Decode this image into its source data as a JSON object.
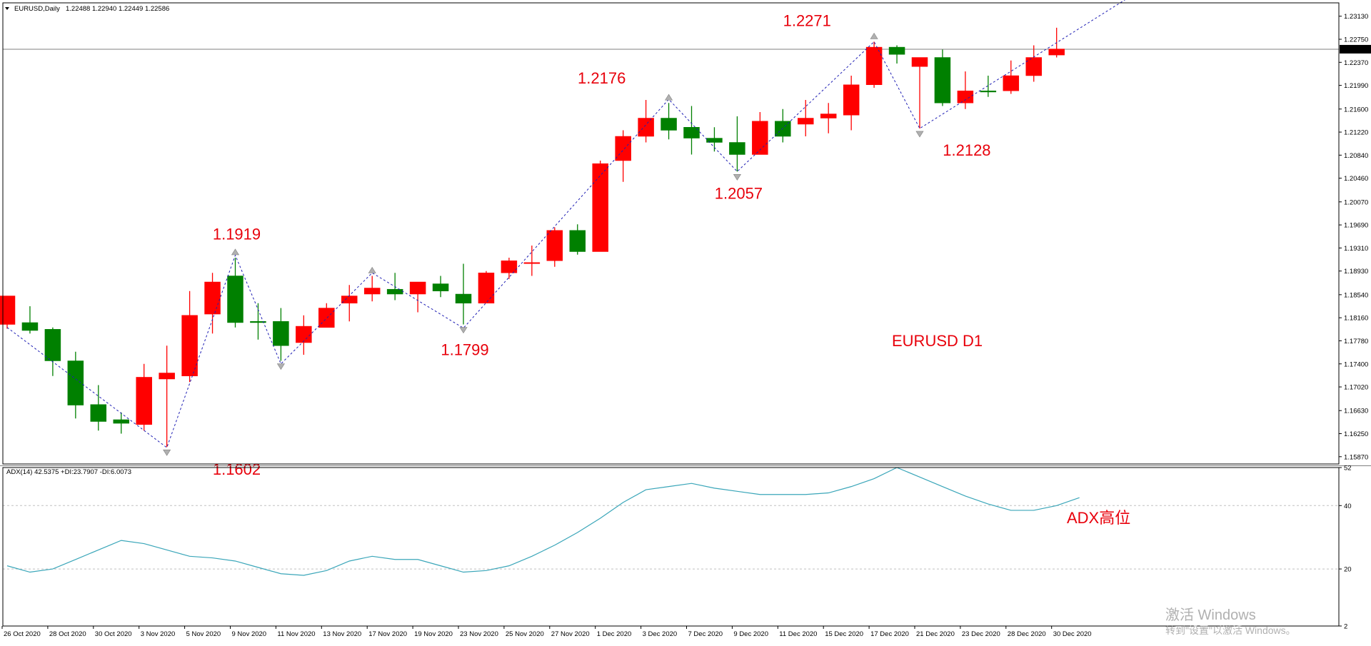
{
  "colors": {
    "up_candle": "#ff0000",
    "down_candle": "#008000",
    "zigzag": "#1e1eb4",
    "adx_line": "#3aa6b9",
    "annotation": "#e8000b",
    "frame": "#000000",
    "grid_level": "#c0c0c0",
    "current_price_line": "#808080"
  },
  "header": {
    "symbol_label": "EURUSD,Daily",
    "ohlc": "1.22488 1.22940 1.22449 1.22586"
  },
  "indicator_header": "ADX(14) 42.5375 +DI:23.7907 -DI:6.0073",
  "chart_data": [
    {
      "type": "candlestick",
      "title": "EURUSD D1",
      "ylim": [
        1.1575,
        1.2335
      ],
      "y_ticks": [
        "1.23130",
        "1.22750",
        "1.22370",
        "1.21990",
        "1.21600",
        "1.21220",
        "1.20840",
        "1.20460",
        "1.20070",
        "1.19690",
        "1.19310",
        "1.18930",
        "1.18540",
        "1.18160",
        "1.17780",
        "1.17400",
        "1.17020",
        "1.16630",
        "1.16250",
        "1.15870"
      ],
      "current_price": "1.22586",
      "x_tick_labels": [
        "26 Oct 2020",
        "28 Oct 2020",
        "30 Oct 2020",
        "3 Nov 2020",
        "5 Nov 2020",
        "9 Nov 2020",
        "11 Nov 2020",
        "13 Nov 2020",
        "17 Nov 2020",
        "19 Nov 2020",
        "23 Nov 2020",
        "25 Nov 2020",
        "27 Nov 2020",
        "1 Dec 2020",
        "3 Dec 2020",
        "7 Dec 2020",
        "9 Dec 2020",
        "11 Dec 2020",
        "15 Dec 2020",
        "17 Dec 2020",
        "21 Dec 2020",
        "23 Dec 2020",
        "28 Dec 2020",
        "30 Dec 2020"
      ],
      "candles": [
        {
          "o": 1.1805,
          "h": 1.1852,
          "l": 1.1798,
          "c": 1.1852
        },
        {
          "o": 1.1808,
          "h": 1.1835,
          "l": 1.179,
          "c": 1.1795
        },
        {
          "o": 1.1797,
          "h": 1.18,
          "l": 1.172,
          "c": 1.1745
        },
        {
          "o": 1.1745,
          "h": 1.176,
          "l": 1.165,
          "c": 1.1672
        },
        {
          "o": 1.1673,
          "h": 1.1705,
          "l": 1.163,
          "c": 1.1645
        },
        {
          "o": 1.1648,
          "h": 1.166,
          "l": 1.1625,
          "c": 1.1642
        },
        {
          "o": 1.164,
          "h": 1.174,
          "l": 1.163,
          "c": 1.1718
        },
        {
          "o": 1.1715,
          "h": 1.177,
          "l": 1.1603,
          "c": 1.1725
        },
        {
          "o": 1.172,
          "h": 1.186,
          "l": 1.171,
          "c": 1.182
        },
        {
          "o": 1.1822,
          "h": 1.189,
          "l": 1.179,
          "c": 1.1875
        },
        {
          "o": 1.1885,
          "h": 1.1915,
          "l": 1.18,
          "c": 1.1808
        },
        {
          "o": 1.181,
          "h": 1.184,
          "l": 1.178,
          "c": 1.1808
        },
        {
          "o": 1.181,
          "h": 1.1832,
          "l": 1.1745,
          "c": 1.177
        },
        {
          "o": 1.1775,
          "h": 1.182,
          "l": 1.1755,
          "c": 1.1802
        },
        {
          "o": 1.18,
          "h": 1.184,
          "l": 1.18,
          "c": 1.1832
        },
        {
          "o": 1.184,
          "h": 1.187,
          "l": 1.181,
          "c": 1.1852
        },
        {
          "o": 1.1855,
          "h": 1.1885,
          "l": 1.1843,
          "c": 1.1865
        },
        {
          "o": 1.1863,
          "h": 1.189,
          "l": 1.1845,
          "c": 1.1855
        },
        {
          "o": 1.1855,
          "h": 1.1875,
          "l": 1.1825,
          "c": 1.1875
        },
        {
          "o": 1.1872,
          "h": 1.1885,
          "l": 1.185,
          "c": 1.186
        },
        {
          "o": 1.1855,
          "h": 1.1905,
          "l": 1.1805,
          "c": 1.184
        },
        {
          "o": 1.184,
          "h": 1.1893,
          "l": 1.184,
          "c": 1.189
        },
        {
          "o": 1.189,
          "h": 1.1915,
          "l": 1.188,
          "c": 1.191
        },
        {
          "o": 1.1907,
          "h": 1.1935,
          "l": 1.1885,
          "c": 1.1907
        },
        {
          "o": 1.191,
          "h": 1.1965,
          "l": 1.19,
          "c": 1.196
        },
        {
          "o": 1.196,
          "h": 1.197,
          "l": 1.192,
          "c": 1.1925
        },
        {
          "o": 1.1925,
          "h": 1.2075,
          "l": 1.1925,
          "c": 1.207
        },
        {
          "o": 1.2075,
          "h": 1.2125,
          "l": 1.204,
          "c": 1.2115
        },
        {
          "o": 1.2115,
          "h": 1.2175,
          "l": 1.2105,
          "c": 1.2145
        },
        {
          "o": 1.2145,
          "h": 1.217,
          "l": 1.211,
          "c": 1.2125
        },
        {
          "o": 1.213,
          "h": 1.2165,
          "l": 1.2085,
          "c": 1.2112
        },
        {
          "o": 1.2112,
          "h": 1.213,
          "l": 1.209,
          "c": 1.2105
        },
        {
          "o": 1.2105,
          "h": 1.2148,
          "l": 1.2057,
          "c": 1.2085
        },
        {
          "o": 1.2085,
          "h": 1.2155,
          "l": 1.2085,
          "c": 1.214
        },
        {
          "o": 1.214,
          "h": 1.216,
          "l": 1.2105,
          "c": 1.2115
        },
        {
          "o": 1.2135,
          "h": 1.2175,
          "l": 1.2115,
          "c": 1.2145
        },
        {
          "o": 1.2145,
          "h": 1.217,
          "l": 1.212,
          "c": 1.2152
        },
        {
          "o": 1.215,
          "h": 1.2215,
          "l": 1.2125,
          "c": 1.22
        },
        {
          "o": 1.22,
          "h": 1.2271,
          "l": 1.2195,
          "c": 1.2262
        },
        {
          "o": 1.2262,
          "h": 1.2265,
          "l": 1.2235,
          "c": 1.225
        },
        {
          "o": 1.223,
          "h": 1.2245,
          "l": 1.2128,
          "c": 1.2245
        },
        {
          "o": 1.2245,
          "h": 1.2258,
          "l": 1.2165,
          "c": 1.217
        },
        {
          "o": 1.217,
          "h": 1.2222,
          "l": 1.216,
          "c": 1.219
        },
        {
          "o": 1.219,
          "h": 1.2215,
          "l": 1.218,
          "c": 1.2188
        },
        {
          "o": 1.219,
          "h": 1.224,
          "l": 1.2185,
          "c": 1.2215
        },
        {
          "o": 1.2215,
          "h": 1.2265,
          "l": 1.2205,
          "c": 1.2245
        },
        {
          "o": 1.2249,
          "h": 1.2294,
          "l": 1.2245,
          "c": 1.2259
        }
      ],
      "zigzag": [
        {
          "i": 0,
          "v": 1.18
        },
        {
          "i": 7,
          "v": 1.1602
        },
        {
          "i": 10,
          "v": 1.1919
        },
        {
          "i": 12,
          "v": 1.174
        },
        {
          "i": 16,
          "v": 1.189
        },
        {
          "i": 20,
          "v": 1.1799
        },
        {
          "i": 29,
          "v": 1.2176
        },
        {
          "i": 32,
          "v": 1.2057
        },
        {
          "i": 38,
          "v": 1.2271
        },
        {
          "i": 40,
          "v": 1.2128
        },
        {
          "i": 49,
          "v": 1.234
        }
      ],
      "fractal_highs": [
        10,
        16,
        29,
        38
      ],
      "fractal_lows": [
        7,
        12,
        20,
        32,
        40
      ],
      "annotations": [
        {
          "text": "1.1919",
          "i": 10,
          "v": 1.1919,
          "pos": "above"
        },
        {
          "text": "1.1602",
          "i": 10,
          "v": 1.1602,
          "pos": "below"
        },
        {
          "text": "1.1799",
          "i": 20,
          "v": 1.1799,
          "pos": "below"
        },
        {
          "text": "1.2176",
          "i": 26,
          "v": 1.2176,
          "pos": "above"
        },
        {
          "text": "1.2057",
          "i": 32,
          "v": 1.2057,
          "pos": "below"
        },
        {
          "text": "1.2271",
          "i": 35,
          "v": 1.2271,
          "pos": "above"
        },
        {
          "text": "1.2128",
          "i": 42,
          "v": 1.2128,
          "pos": "below"
        }
      ]
    },
    {
      "type": "line",
      "title": "ADX(14) 42.5375 +DI:23.7907 -DI:6.0073",
      "ylim": [
        2,
        52
      ],
      "y_ticks": [
        "52",
        "40",
        "20",
        "2"
      ],
      "levels": [
        20,
        40
      ],
      "series": [
        {
          "values": [
            21,
            19,
            20,
            23,
            26,
            29,
            28,
            26,
            24,
            23.5,
            22.5,
            20.5,
            18.5,
            18,
            19.5,
            22.5,
            24,
            23,
            23,
            21,
            19,
            19.5,
            21,
            24,
            27.5,
            31.5,
            36,
            41,
            45,
            46,
            47,
            45.5,
            44.5,
            43.5,
            43.5,
            43.5,
            44,
            46,
            48.5,
            52,
            49,
            46,
            43,
            40.5,
            38.5,
            38.5,
            40,
            42.5
          ]
        }
      ]
    }
  ],
  "annotations": {
    "symbol_tf": "EURUSD D1",
    "adx_note": "ADX高位"
  },
  "watermark": {
    "line1": "激活 Windows",
    "line2": "转到\"设置\"以激活 Windows。"
  }
}
